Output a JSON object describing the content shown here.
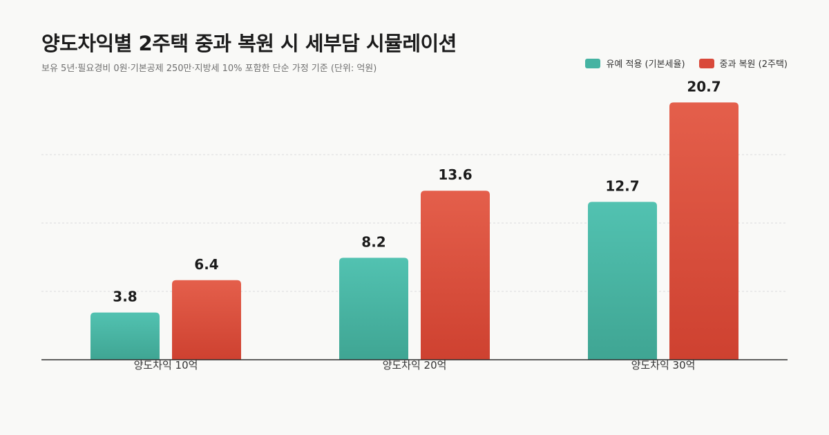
{
  "header": {
    "title": "양도차익별 2주택 중과 복원 시 세부담 시뮬레이션",
    "subtitle": "보유 5년·필요경비 0원·기본공제 250만·지방세 10% 포함한 단순 가정 기준 (단위: 억원)"
  },
  "colors": {
    "series_a": "#45b3a2",
    "series_b": "#d9493a",
    "axis": "#2b2b2b",
    "grid": "#dcdcdc",
    "label": "#1b1b1b"
  },
  "chart_data": {
    "type": "bar",
    "categories": [
      "양도차익 10억",
      "양도차익 20억",
      "양도차익 30억"
    ],
    "series": [
      {
        "name": "유예 적용 (기본세율)",
        "values": [
          3.8,
          8.2,
          12.7
        ]
      },
      {
        "name": "중과 복원 (2주택)",
        "values": [
          6.4,
          13.6,
          20.7
        ]
      }
    ],
    "value_labels": [
      [
        "3.8",
        "8.2",
        "12.7"
      ],
      [
        "6.4",
        "13.6",
        "20.7"
      ]
    ],
    "ylim": [
      0,
      22
    ],
    "grid": true,
    "legend_position": "top-right"
  }
}
